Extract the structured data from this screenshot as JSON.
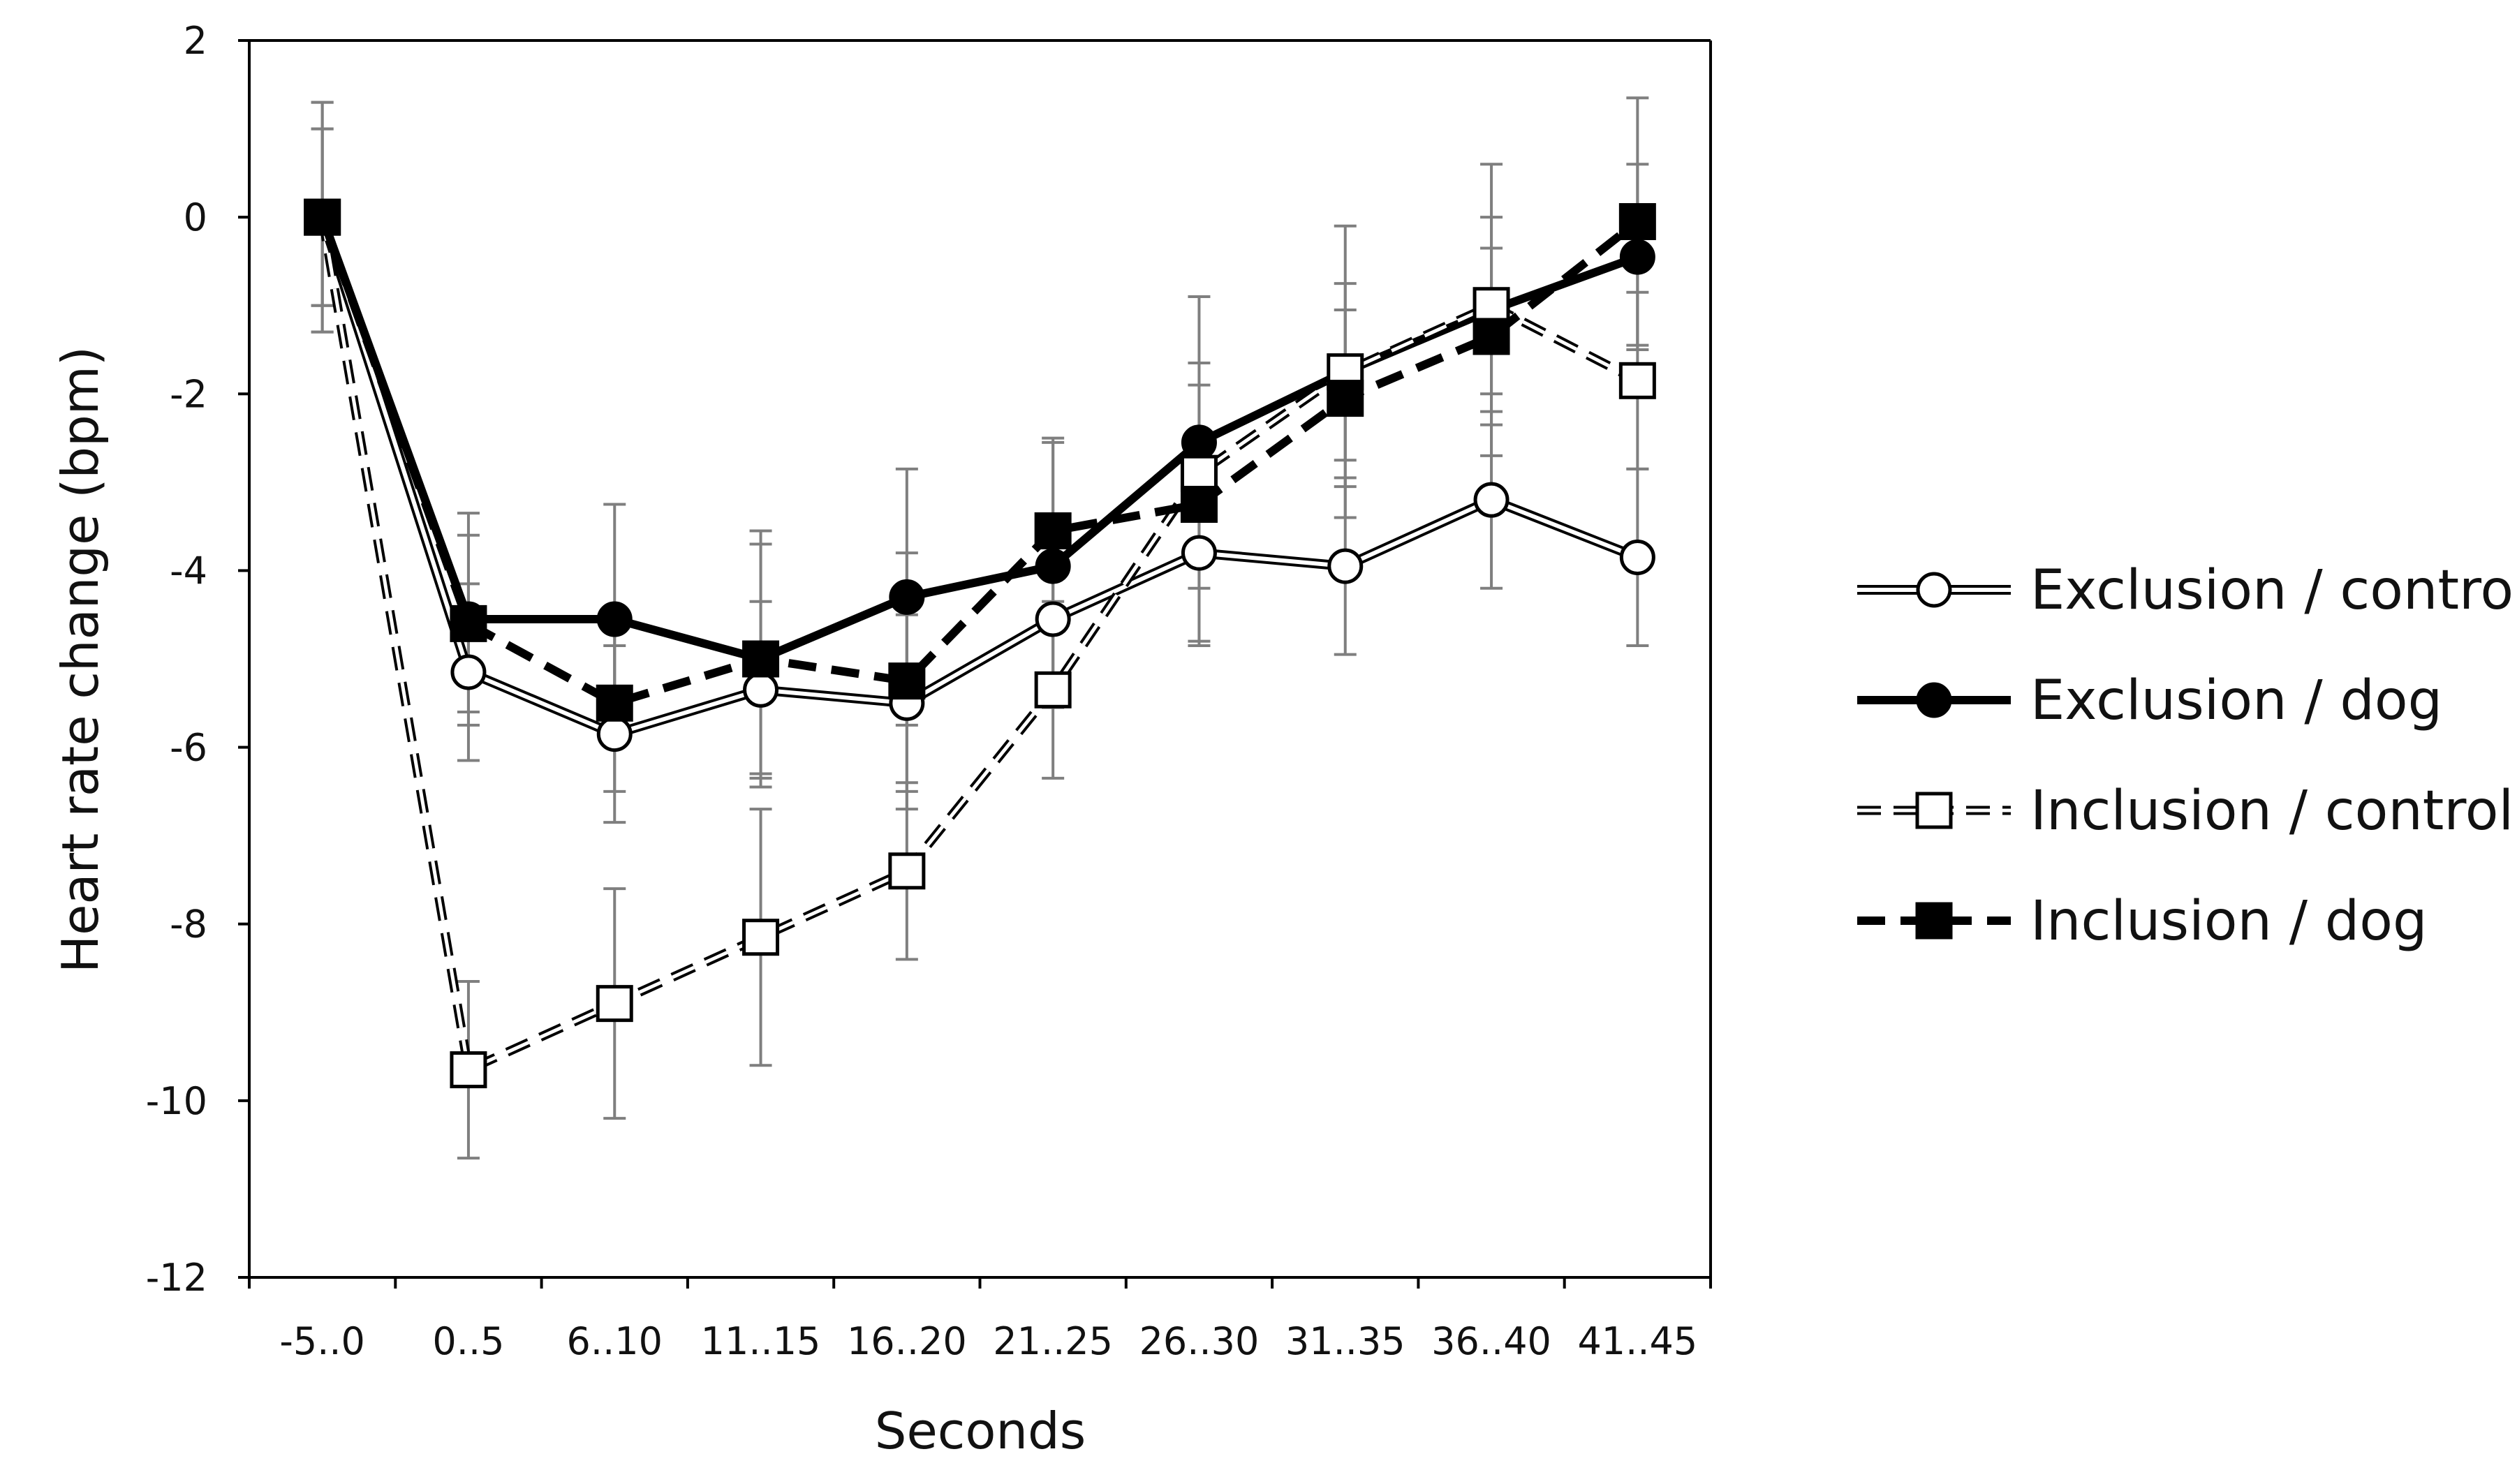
{
  "chart_data": {
    "type": "line",
    "title": "",
    "xlabel": "Seconds",
    "ylabel": "Heart rate change (bpm)",
    "categories": [
      "-5..0",
      "0..5",
      "6..10",
      "11..15",
      "16..20",
      "21..25",
      "26..30",
      "31..35",
      "36..40",
      "41..45"
    ],
    "ylim": [
      -12,
      2
    ],
    "yticks": [
      "2",
      "0",
      "-2",
      "-4",
      "-6",
      "-8",
      "-10",
      "-12"
    ],
    "ytick_values": [
      2,
      0,
      -2,
      -4,
      -6,
      -8,
      -10,
      -12
    ],
    "grid": false,
    "legend": "right",
    "series": [
      {
        "name": "Exclusion / control",
        "values": [
          0,
          -5.15,
          -5.85,
          -5.35,
          -5.5,
          -4.55,
          -3.8,
          -3.95,
          -3.2,
          -3.85
        ],
        "error": [
          1.0,
          1.0,
          1.0,
          1.0,
          1.0,
          1.0,
          1.0,
          1.0,
          1.0,
          1.0
        ],
        "line": "double",
        "marker": "circle-open",
        "color": "#000000"
      },
      {
        "name": "Exclusion / dog",
        "values": [
          0,
          -4.55,
          -4.55,
          -5.0,
          -4.3,
          -3.95,
          -2.55,
          -1.75,
          -1.05,
          -0.45
        ],
        "error": [
          1.3,
          1.2,
          1.3,
          1.3,
          1.45,
          1.45,
          1.65,
          1.65,
          1.65,
          1.05
        ],
        "line": "solid-thick",
        "marker": "circle-filled",
        "color": "#000000"
      },
      {
        "name": "Inclusion / control",
        "values": [
          0,
          -9.65,
          -8.9,
          -8.15,
          -7.4,
          -5.35,
          -2.9,
          -1.75,
          -1.0,
          -1.85
        ],
        "error": [
          1.0,
          1.0,
          1.3,
          1.45,
          1.0,
          1.0,
          1.0,
          1.0,
          1.0,
          1.0
        ],
        "line": "dashed-double",
        "marker": "square-open",
        "color": "#000000"
      },
      {
        "name": "Inclusion / dog",
        "values": [
          0,
          -4.6,
          -5.5,
          -5.0,
          -5.25,
          -3.55,
          -3.25,
          -2.05,
          -1.35,
          -0.05
        ],
        "error": [
          1.3,
          1.0,
          1.0,
          1.45,
          1.45,
          1.0,
          1.6,
          1.0,
          1.0,
          1.4
        ],
        "line": "dashed-thick",
        "marker": "square-filled",
        "color": "#000000"
      }
    ]
  },
  "colors": {
    "line": "#000000",
    "errorbar": "#7f7f7f",
    "background": "#ffffff"
  }
}
